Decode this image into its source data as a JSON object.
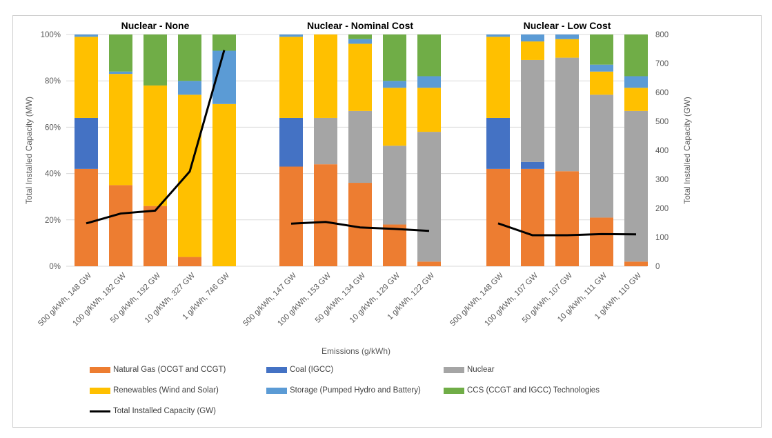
{
  "chart_data": {
    "type": "bar",
    "stacked": true,
    "percent_axis": true,
    "x_axis_label": "Emissions (g/kWh)",
    "y_axis_left_label": "Total Installed Capacity (MW)",
    "y_axis_right_label": "Total Installed Capacity (GW)",
    "y_left_ticks": [
      "0%",
      "20%",
      "40%",
      "60%",
      "80%",
      "100%"
    ],
    "y_right_ticks": [
      "0",
      "100",
      "200",
      "300",
      "400",
      "500",
      "600",
      "700",
      "800"
    ],
    "y_right_range": [
      0,
      800
    ],
    "series_names": [
      "Natural Gas (OCGT and CCGT)",
      "Coal (IGCC)",
      "Nuclear",
      "Renewables (Wind and Solar)",
      "Storage (Pumped Hydro and Battery)",
      "CCS (CCGT and IGCC) Technologies"
    ],
    "series_colors": [
      "#ED7D31",
      "#4472C4",
      "#A5A5A5",
      "#FFC000",
      "#5B9BD5",
      "#70AD47"
    ],
    "line_series": {
      "name": "Total Installed Capacity (GW)",
      "color": "#000000"
    },
    "panels": [
      {
        "title": "Nuclear - None",
        "categories": [
          "500 g/kWh, 148 GW",
          "100 g/kWh, 182 GW",
          "50 g/kWh, 192 GW",
          "10 g/kWh, 327 GW",
          "1 g/kWh, 746 GW"
        ],
        "shares_pct": [
          [
            42,
            22,
            0,
            35,
            1,
            0
          ],
          [
            35,
            0,
            0,
            48,
            1,
            16
          ],
          [
            26,
            0,
            0,
            52,
            0,
            22
          ],
          [
            4,
            0,
            0,
            70,
            6,
            20
          ],
          [
            0,
            0,
            0,
            70,
            23,
            7
          ]
        ],
        "total_gw": [
          148,
          182,
          192,
          327,
          746
        ]
      },
      {
        "title": "Nuclear - Nominal Cost",
        "categories": [
          "500 g/kWh, 147 GW",
          "100 g/kWh, 153 GW",
          "50 g/kWh, 134 GW",
          "10 g/kWh, 129 GW",
          "1 g/kWh, 122 GW"
        ],
        "shares_pct": [
          [
            43,
            21,
            0,
            35,
            1,
            0
          ],
          [
            44,
            0,
            20,
            36,
            0,
            0
          ],
          [
            36,
            0,
            31,
            29,
            2,
            2
          ],
          [
            18,
            0,
            34,
            25,
            3,
            20
          ],
          [
            2,
            0,
            56,
            19,
            5,
            18
          ]
        ],
        "total_gw": [
          147,
          153,
          134,
          129,
          122
        ]
      },
      {
        "title": "Nuclear - Low Cost",
        "categories": [
          "500 g/kWh, 148 GW",
          "100 g/kWh, 107 GW",
          "50 g/kWh, 107 GW",
          "10 g/kWh, 111 GW",
          "1 g/kWh, 110 GW"
        ],
        "shares_pct": [
          [
            42,
            22,
            0,
            35,
            1,
            0
          ],
          [
            42,
            3,
            44,
            8,
            3,
            0
          ],
          [
            41,
            0,
            49,
            8,
            2,
            0
          ],
          [
            21,
            0,
            53,
            10,
            3,
            13
          ],
          [
            2,
            0,
            65,
            10,
            5,
            18
          ]
        ],
        "total_gw": [
          148,
          107,
          107,
          111,
          110
        ]
      }
    ]
  }
}
